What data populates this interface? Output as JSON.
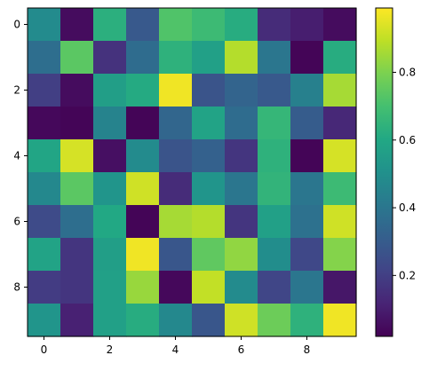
{
  "chart_data": {
    "type": "heatmap",
    "title": "",
    "xlabel": "",
    "ylabel": "",
    "xlim": [
      -0.5,
      9.5
    ],
    "ylim": [
      9.5,
      -0.5
    ],
    "x_ticks": [
      0,
      2,
      4,
      6,
      8
    ],
    "y_ticks": [
      0,
      2,
      4,
      6,
      8
    ],
    "x_tick_labels": [
      "0",
      "2",
      "4",
      "6",
      "8"
    ],
    "y_tick_labels": [
      "0",
      "2",
      "4",
      "6",
      "8"
    ],
    "colormap": "viridis",
    "vmin": 0.02,
    "vmax": 0.99,
    "colorbar": {
      "ticks": [
        0.2,
        0.4,
        0.6,
        0.8
      ],
      "tick_labels": [
        "0.2",
        "0.4",
        "0.6",
        "0.8"
      ],
      "placement": "right"
    },
    "grid": false,
    "values": [
      [
        0.48,
        0.05,
        0.63,
        0.29,
        0.72,
        0.68,
        0.62,
        0.14,
        0.1,
        0.05
      ],
      [
        0.37,
        0.74,
        0.16,
        0.36,
        0.64,
        0.57,
        0.88,
        0.4,
        0.03,
        0.62
      ],
      [
        0.2,
        0.05,
        0.56,
        0.61,
        0.97,
        0.27,
        0.33,
        0.29,
        0.44,
        0.86
      ],
      [
        0.04,
        0.03,
        0.45,
        0.03,
        0.34,
        0.58,
        0.36,
        0.66,
        0.3,
        0.13
      ],
      [
        0.59,
        0.93,
        0.06,
        0.48,
        0.27,
        0.32,
        0.17,
        0.64,
        0.03,
        0.93
      ],
      [
        0.47,
        0.74,
        0.52,
        0.92,
        0.14,
        0.52,
        0.4,
        0.65,
        0.4,
        0.68
      ],
      [
        0.24,
        0.37,
        0.6,
        0.03,
        0.86,
        0.88,
        0.17,
        0.57,
        0.38,
        0.92
      ],
      [
        0.58,
        0.17,
        0.56,
        0.97,
        0.28,
        0.75,
        0.83,
        0.49,
        0.23,
        0.81
      ],
      [
        0.19,
        0.17,
        0.57,
        0.84,
        0.04,
        0.9,
        0.48,
        0.22,
        0.4,
        0.08
      ],
      [
        0.52,
        0.11,
        0.57,
        0.62,
        0.47,
        0.28,
        0.92,
        0.77,
        0.64,
        0.97
      ]
    ]
  }
}
